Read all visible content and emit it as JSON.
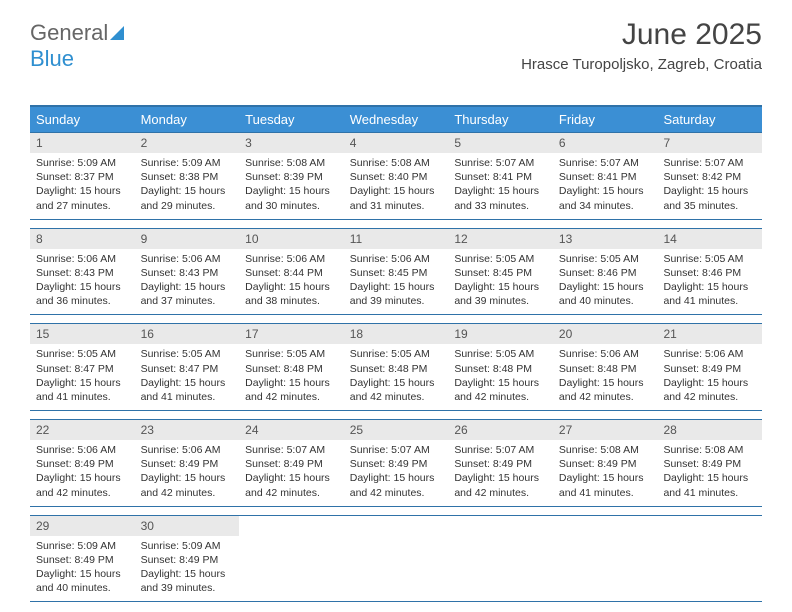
{
  "logo": {
    "word1": "General",
    "word2": "Blue"
  },
  "title": "June 2025",
  "location": "Hrasce Turopoljsko, Zagreb, Croatia",
  "colors": {
    "header_bg": "#3b8fd4",
    "header_text": "#ffffff",
    "border": "#2f72a8",
    "shade": "#e9e9e9",
    "text": "#333333",
    "title": "#444444",
    "logo_gray": "#666666",
    "logo_blue": "#2f8fd0"
  },
  "days_of_week": [
    "Sunday",
    "Monday",
    "Tuesday",
    "Wednesday",
    "Thursday",
    "Friday",
    "Saturday"
  ],
  "weeks": [
    [
      {
        "n": "1",
        "sr": "5:09 AM",
        "ss": "8:37 PM",
        "dl": "15 hours and 27 minutes."
      },
      {
        "n": "2",
        "sr": "5:09 AM",
        "ss": "8:38 PM",
        "dl": "15 hours and 29 minutes."
      },
      {
        "n": "3",
        "sr": "5:08 AM",
        "ss": "8:39 PM",
        "dl": "15 hours and 30 minutes."
      },
      {
        "n": "4",
        "sr": "5:08 AM",
        "ss": "8:40 PM",
        "dl": "15 hours and 31 minutes."
      },
      {
        "n": "5",
        "sr": "5:07 AM",
        "ss": "8:41 PM",
        "dl": "15 hours and 33 minutes."
      },
      {
        "n": "6",
        "sr": "5:07 AM",
        "ss": "8:41 PM",
        "dl": "15 hours and 34 minutes."
      },
      {
        "n": "7",
        "sr": "5:07 AM",
        "ss": "8:42 PM",
        "dl": "15 hours and 35 minutes."
      }
    ],
    [
      {
        "n": "8",
        "sr": "5:06 AM",
        "ss": "8:43 PM",
        "dl": "15 hours and 36 minutes."
      },
      {
        "n": "9",
        "sr": "5:06 AM",
        "ss": "8:43 PM",
        "dl": "15 hours and 37 minutes."
      },
      {
        "n": "10",
        "sr": "5:06 AM",
        "ss": "8:44 PM",
        "dl": "15 hours and 38 minutes."
      },
      {
        "n": "11",
        "sr": "5:06 AM",
        "ss": "8:45 PM",
        "dl": "15 hours and 39 minutes."
      },
      {
        "n": "12",
        "sr": "5:05 AM",
        "ss": "8:45 PM",
        "dl": "15 hours and 39 minutes."
      },
      {
        "n": "13",
        "sr": "5:05 AM",
        "ss": "8:46 PM",
        "dl": "15 hours and 40 minutes."
      },
      {
        "n": "14",
        "sr": "5:05 AM",
        "ss": "8:46 PM",
        "dl": "15 hours and 41 minutes."
      }
    ],
    [
      {
        "n": "15",
        "sr": "5:05 AM",
        "ss": "8:47 PM",
        "dl": "15 hours and 41 minutes."
      },
      {
        "n": "16",
        "sr": "5:05 AM",
        "ss": "8:47 PM",
        "dl": "15 hours and 41 minutes."
      },
      {
        "n": "17",
        "sr": "5:05 AM",
        "ss": "8:48 PM",
        "dl": "15 hours and 42 minutes."
      },
      {
        "n": "18",
        "sr": "5:05 AM",
        "ss": "8:48 PM",
        "dl": "15 hours and 42 minutes."
      },
      {
        "n": "19",
        "sr": "5:05 AM",
        "ss": "8:48 PM",
        "dl": "15 hours and 42 minutes."
      },
      {
        "n": "20",
        "sr": "5:06 AM",
        "ss": "8:48 PM",
        "dl": "15 hours and 42 minutes."
      },
      {
        "n": "21",
        "sr": "5:06 AM",
        "ss": "8:49 PM",
        "dl": "15 hours and 42 minutes."
      }
    ],
    [
      {
        "n": "22",
        "sr": "5:06 AM",
        "ss": "8:49 PM",
        "dl": "15 hours and 42 minutes."
      },
      {
        "n": "23",
        "sr": "5:06 AM",
        "ss": "8:49 PM",
        "dl": "15 hours and 42 minutes."
      },
      {
        "n": "24",
        "sr": "5:07 AM",
        "ss": "8:49 PM",
        "dl": "15 hours and 42 minutes."
      },
      {
        "n": "25",
        "sr": "5:07 AM",
        "ss": "8:49 PM",
        "dl": "15 hours and 42 minutes."
      },
      {
        "n": "26",
        "sr": "5:07 AM",
        "ss": "8:49 PM",
        "dl": "15 hours and 42 minutes."
      },
      {
        "n": "27",
        "sr": "5:08 AM",
        "ss": "8:49 PM",
        "dl": "15 hours and 41 minutes."
      },
      {
        "n": "28",
        "sr": "5:08 AM",
        "ss": "8:49 PM",
        "dl": "15 hours and 41 minutes."
      }
    ],
    [
      {
        "n": "29",
        "sr": "5:09 AM",
        "ss": "8:49 PM",
        "dl": "15 hours and 40 minutes."
      },
      {
        "n": "30",
        "sr": "5:09 AM",
        "ss": "8:49 PM",
        "dl": "15 hours and 39 minutes."
      },
      null,
      null,
      null,
      null,
      null
    ]
  ],
  "labels": {
    "sunrise": "Sunrise:",
    "sunset": "Sunset:",
    "daylight": "Daylight:"
  }
}
